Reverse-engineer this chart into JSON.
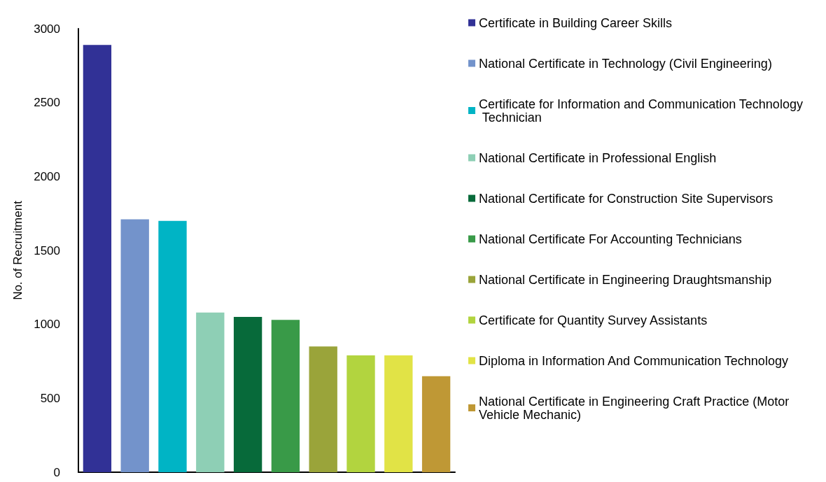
{
  "chart_data": {
    "type": "bar",
    "ylabel": "No. of Recruitment",
    "categories": [
      null,
      null,
      null,
      null,
      null,
      null,
      null,
      null,
      null,
      null
    ],
    "series": [
      {
        "name": "Certificate in Building Career Skills",
        "color": "#313196",
        "values": [
          2890,
          null,
          null,
          null,
          null,
          null,
          null,
          null,
          null,
          null
        ]
      },
      {
        "name": "National Certificate in Technology (Civil Engineering)",
        "color": "#7393cb",
        "values": [
          null,
          1710,
          null,
          null,
          null,
          null,
          null,
          null,
          null,
          null
        ]
      },
      {
        "name": "Certificate for Information and Communication Technology Technician",
        "color": "#00b4c5",
        "values": [
          null,
          null,
          1700,
          null,
          null,
          null,
          null,
          null,
          null,
          null
        ]
      },
      {
        "name": "National Certificate in Professional English",
        "color": "#8ecfb5",
        "values": [
          null,
          null,
          null,
          1080,
          null,
          null,
          null,
          null,
          null,
          null
        ]
      },
      {
        "name": "National Certificate for Construction Site Supervisors",
        "color": "#076a3a",
        "values": [
          null,
          null,
          null,
          null,
          1050,
          null,
          null,
          null,
          null,
          null
        ]
      },
      {
        "name": "National Certificate For Accounting Technicians",
        "color": "#399a48",
        "values": [
          null,
          null,
          null,
          null,
          null,
          1030,
          null,
          null,
          null,
          null
        ]
      },
      {
        "name": "National Certificate in Engineering Draughtsmanship",
        "color": "#9aa43a",
        "values": [
          null,
          null,
          null,
          null,
          null,
          null,
          850,
          null,
          null,
          null
        ]
      },
      {
        "name": "Certificate for Quantity Survey Assistants",
        "color": "#b2d43f",
        "values": [
          null,
          null,
          null,
          null,
          null,
          null,
          null,
          790,
          null,
          null
        ]
      },
      {
        "name": "Diploma in Information And Communication Technology",
        "color": "#e1e346",
        "values": [
          null,
          null,
          null,
          null,
          null,
          null,
          null,
          null,
          790,
          null
        ]
      },
      {
        "name": "National Certificate in Engineering Craft Practice (Motor Vehicle Mechanic)",
        "color": "#bf9835",
        "values": [
          null,
          null,
          null,
          null,
          null,
          null,
          null,
          null,
          null,
          650
        ]
      }
    ],
    "ylim": [
      0,
      3000
    ],
    "yticks": [
      0,
      500,
      1000,
      1500,
      2000,
      2500,
      3000
    ],
    "grid": false,
    "legend": "right"
  }
}
